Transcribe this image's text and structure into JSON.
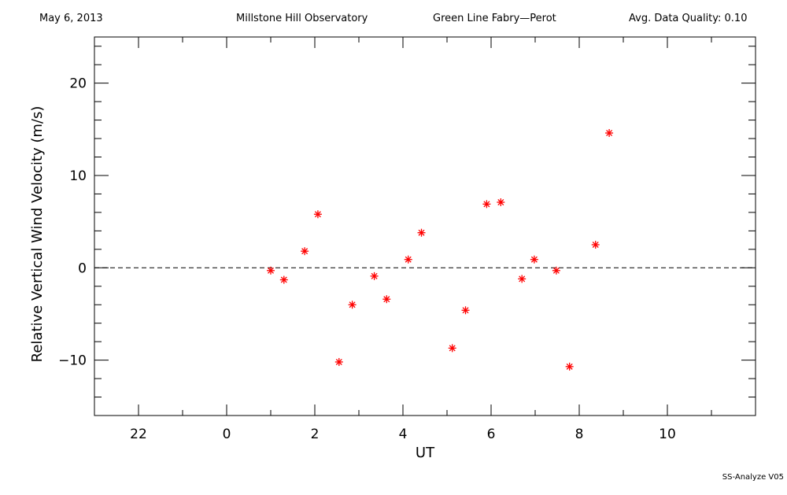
{
  "header": {
    "date": "May 6, 2013",
    "observatory": "Millstone Hill Observatory",
    "instrument": "Green Line Fabry—Perot",
    "quality": "Avg. Data Quality: 0.10"
  },
  "footer": {
    "version": "SS-Analyze V05"
  },
  "colors": {
    "marker": "#ff0000",
    "axis": "#000000"
  },
  "chart_data": {
    "type": "scatter",
    "title": "",
    "xlabel": "UT",
    "ylabel": "Relative Vertical Wind Velocity (m/s)",
    "xlim": [
      -3,
      12
    ],
    "ylim": [
      -16,
      25
    ],
    "x_major_ticks": [
      -2,
      0,
      2,
      4,
      6,
      8,
      10
    ],
    "x_tick_labels": [
      "22",
      "0",
      "2",
      "4",
      "6",
      "8",
      "10"
    ],
    "y_major_ticks": [
      -10,
      0,
      10,
      20
    ],
    "y_tick_labels": [
      "−10",
      "0",
      "10",
      "20"
    ],
    "reference_line": {
      "y": 0,
      "style": "dashed"
    },
    "grid": false,
    "marker": "asterisk",
    "points": [
      {
        "x": 1.0,
        "y": -0.3
      },
      {
        "x": 1.3,
        "y": -1.3
      },
      {
        "x": 1.77,
        "y": 1.8
      },
      {
        "x": 2.07,
        "y": 5.8
      },
      {
        "x": 2.55,
        "y": -10.2
      },
      {
        "x": 2.85,
        "y": -4.0
      },
      {
        "x": 3.35,
        "y": -0.9
      },
      {
        "x": 3.63,
        "y": -3.4
      },
      {
        "x": 4.12,
        "y": 0.9
      },
      {
        "x": 4.42,
        "y": 3.8
      },
      {
        "x": 5.12,
        "y": -8.7
      },
      {
        "x": 5.42,
        "y": -4.6
      },
      {
        "x": 5.9,
        "y": 6.9
      },
      {
        "x": 6.22,
        "y": 7.1
      },
      {
        "x": 6.7,
        "y": -1.2
      },
      {
        "x": 6.98,
        "y": 0.9
      },
      {
        "x": 7.48,
        "y": -0.3
      },
      {
        "x": 7.78,
        "y": -10.7
      },
      {
        "x": 8.37,
        "y": 2.5
      },
      {
        "x": 8.68,
        "y": 14.6
      }
    ]
  }
}
